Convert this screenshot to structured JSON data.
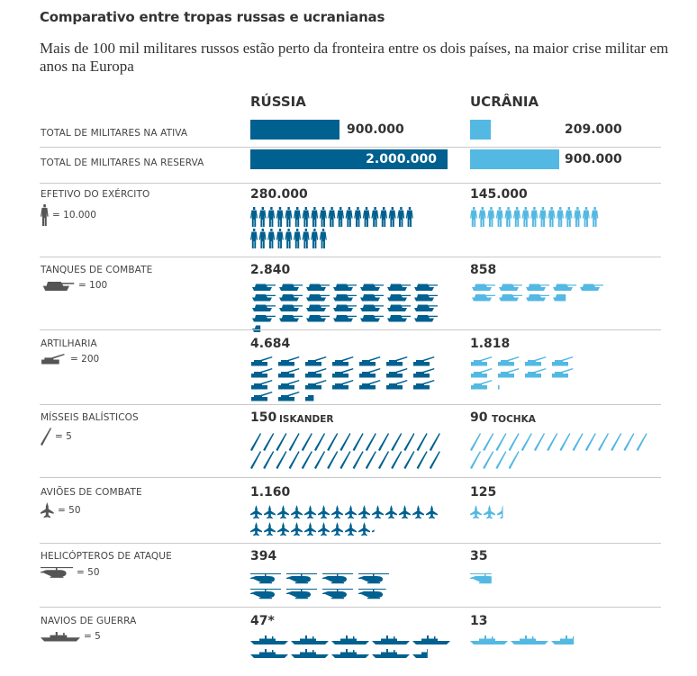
{
  "title": "Comparativo entre tropas russas e ucranianas",
  "subtitle": "Mais de 100 mil militares russos estão perto da fronteira entre os dois países, na maior crise militar em anos na Europa",
  "columns": {
    "russia": "RÚSSIA",
    "ukraine": "UCRÂNIA"
  },
  "colors": {
    "russia": "#00608f",
    "ukraine": "#53b8e2"
  },
  "bars": [
    {
      "label": "TOTAL DE MILITARES NA ATIVA",
      "russia_text": "900.000",
      "ukraine_text": "209.000",
      "russia": 900000,
      "ukraine": 209000
    },
    {
      "label": "TOTAL DE MILITARES NA RESERVA",
      "russia_text": "2.000.000",
      "ukraine_text": "900.000",
      "russia": 2000000,
      "ukraine": 900000
    }
  ],
  "rows": [
    {
      "label": "EFETIVO DO EXÉRCITO",
      "legend": "= 10.000",
      "icon": "soldier-icon",
      "russia_text": "280.000",
      "ukraine_text": "145.000",
      "russia_icons": 28,
      "ukraine_icons": 15
    },
    {
      "label": "TANQUES DE COMBATE",
      "legend": "= 100",
      "icon": "tank-icon",
      "russia_text": "2.840",
      "ukraine_text": "858",
      "russia_icons": 28.4,
      "ukraine_icons": 8.58
    },
    {
      "label": "ARTILHARIA",
      "legend": "= 200",
      "icon": "artillery-icon",
      "russia_text": "4.684",
      "ukraine_text": "1.818",
      "russia_icons": 23.4,
      "ukraine_icons": 9.1
    },
    {
      "label": "MÍSSEIS BALÍSTICOS",
      "legend": "= 5",
      "icon": "missile-icon",
      "russia_text": "150",
      "russia_sub": "ISKANDER",
      "ukraine_text": "90",
      "ukraine_sub": "TOCHKA",
      "russia_icons": 30,
      "ukraine_icons": 18
    },
    {
      "label": "AVIÕES DE COMBATE",
      "legend": "= 50",
      "icon": "jet-icon",
      "russia_text": "1.160",
      "ukraine_text": "125",
      "russia_icons": 23.2,
      "ukraine_icons": 2.5
    },
    {
      "label": "HELICÓPTEROS DE ATAQUE",
      "legend": "= 50",
      "icon": "helicopter-icon",
      "russia_text": "394",
      "ukraine_text": "35",
      "russia_icons": 7.9,
      "ukraine_icons": 0.7
    },
    {
      "label": "NAVIOS DE GUERRA",
      "legend": "= 5",
      "icon": "warship-icon",
      "russia_text": "47*",
      "ukraine_text": "13",
      "russia_icons": 9.4,
      "ukraine_icons": 2.6
    }
  ],
  "chart_data": {
    "type": "bar",
    "title": "Comparativo entre tropas russas e ucranianas",
    "categories": [
      "TOTAL DE MILITARES NA ATIVA",
      "TOTAL DE MILITARES NA RESERVA",
      "EFETIVO DO EXÉRCITO",
      "TANQUES DE COMBATE",
      "ARTILHARIA",
      "MÍSSEIS BALÍSTICOS",
      "AVIÕES DE COMBATE",
      "HELICÓPTEROS DE ATAQUE",
      "NAVIOS DE GUERRA"
    ],
    "series": [
      {
        "name": "RÚSSIA",
        "values": [
          900000,
          2000000,
          280000,
          2840,
          4684,
          150,
          1160,
          394,
          47
        ]
      },
      {
        "name": "UCRÂNIA",
        "values": [
          209000,
          900000,
          145000,
          858,
          1818,
          90,
          125,
          35,
          13
        ]
      }
    ]
  }
}
